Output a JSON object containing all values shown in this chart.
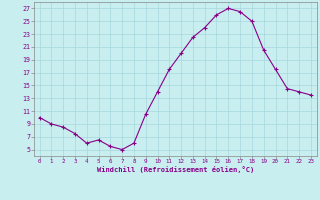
{
  "x": [
    0,
    1,
    2,
    3,
    4,
    5,
    6,
    7,
    8,
    9,
    10,
    11,
    12,
    13,
    14,
    15,
    16,
    17,
    18,
    19,
    20,
    21,
    22,
    23
  ],
  "y": [
    10,
    9,
    8.5,
    7.5,
    6,
    6.5,
    5.5,
    5,
    6,
    10.5,
    14,
    17.5,
    20,
    22.5,
    24,
    26,
    27,
    26.5,
    25,
    20.5,
    17.5,
    14.5,
    14,
    13.5
  ],
  "line_color": "#880088",
  "marker": "+",
  "marker_color": "#880088",
  "bg_color": "#c8eef0",
  "grid_color": "#a8d8dc",
  "xlabel": "Windchill (Refroidissement éolien,°C)",
  "ylabel_ticks": [
    5,
    7,
    9,
    11,
    13,
    15,
    17,
    19,
    21,
    23,
    25,
    27
  ],
  "xlim": [
    -0.5,
    23.5
  ],
  "ylim": [
    4.0,
    28.0
  ],
  "xticks": [
    0,
    1,
    2,
    3,
    4,
    5,
    6,
    7,
    8,
    9,
    10,
    11,
    12,
    13,
    14,
    15,
    16,
    17,
    18,
    19,
    20,
    21,
    22,
    23
  ],
  "axis_color": "#880088",
  "tick_color": "#880088",
  "label_color": "#880088",
  "spine_color": "#888888"
}
